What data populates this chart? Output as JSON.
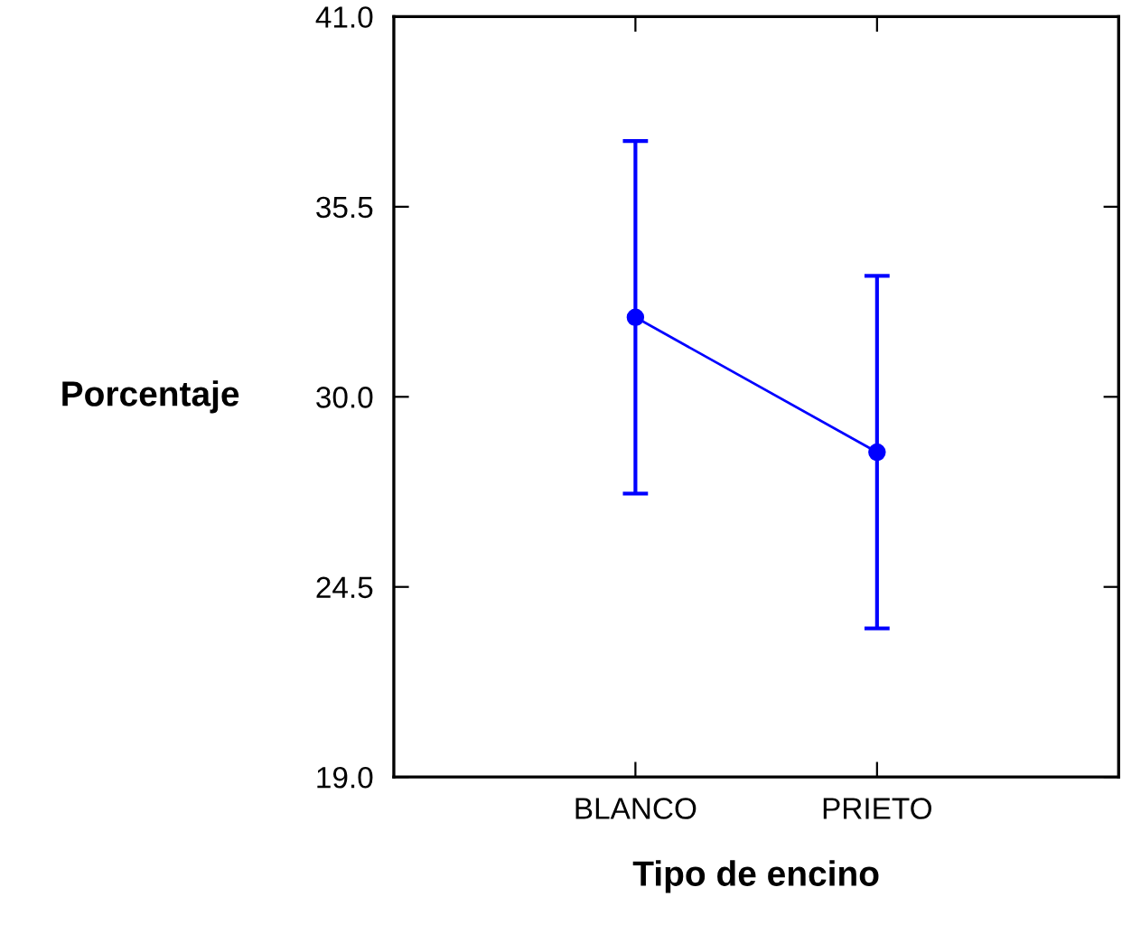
{
  "chart_data": {
    "type": "line",
    "xlabel": "Tipo de encino",
    "ylabel": "Porcentaje",
    "categories": [
      "BLANCO",
      "PRIETO"
    ],
    "series": [
      {
        "color": "#0000ff",
        "values": [
          32.3,
          28.4
        ],
        "errors": [
          5.1,
          5.1
        ]
      }
    ],
    "marker": "circle",
    "line_style": "solid",
    "grid": false,
    "ylim": [
      19.0,
      41.0
    ],
    "yticks": [
      {
        "value": 19.0,
        "label": "19.0"
      },
      {
        "value": 24.5,
        "label": "24.5"
      },
      {
        "value": 30.0,
        "label": "30.0"
      },
      {
        "value": 35.5,
        "label": "35.5"
      },
      {
        "value": 41.0,
        "label": "41.0"
      }
    ]
  }
}
